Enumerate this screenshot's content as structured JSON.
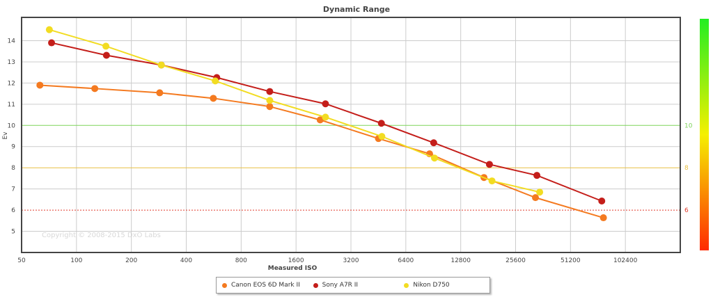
{
  "chart_data": {
    "type": "line",
    "title": "Dynamic Range",
    "xlabel": "Measured ISO",
    "ylabel": "Ev",
    "x_scale": "log2",
    "xlim": [
      50,
      204800
    ],
    "ylim": [
      4,
      15.1
    ],
    "x_ticks": [
      50,
      100,
      200,
      400,
      800,
      1600,
      3200,
      6400,
      12800,
      25600,
      51200,
      102400
    ],
    "y_ticks": [
      5,
      6,
      7,
      8,
      9,
      10,
      11,
      12,
      13,
      14
    ],
    "grid": true,
    "legend_placement": "bottom",
    "reference_lines": [
      {
        "y": 10,
        "label": "10",
        "color": "#7fd35a"
      },
      {
        "y": 8,
        "label": "8",
        "color": "#e8c040"
      },
      {
        "y": 6,
        "label": "6",
        "color": "#e03a2a"
      }
    ],
    "colorbar": {
      "top_color": "#22ee22",
      "mid_color": "#f5f000",
      "bottom_color": "#ff2a00"
    },
    "watermark": "Copyright © 2008-2015 DxO Labs",
    "series": [
      {
        "name": "Canon EOS 6D Mark II",
        "color": "#f47a20",
        "x": [
          63,
          126,
          286,
          563,
          1148,
          2170,
          4530,
          8640,
          17170,
          32900,
          77600
        ],
        "y": [
          11.9,
          11.74,
          11.54,
          11.28,
          10.89,
          10.26,
          9.38,
          8.66,
          7.54,
          6.59,
          5.64
        ]
      },
      {
        "name": "Sony A7R II",
        "color": "#c41e1a",
        "x": [
          73,
          146,
          292,
          588,
          1148,
          2320,
          4700,
          9100,
          18400,
          33500,
          76000
        ],
        "y": [
          13.9,
          13.31,
          12.85,
          12.26,
          11.6,
          11.02,
          10.1,
          9.18,
          8.16,
          7.64,
          6.43
        ]
      },
      {
        "name": "Nikon D750",
        "color": "#f2dc22",
        "x": [
          71,
          145,
          292,
          577,
          1148,
          2320,
          4730,
          9190,
          19000,
          34700
        ],
        "y": [
          14.52,
          13.74,
          12.85,
          12.1,
          11.18,
          10.39,
          9.48,
          8.46,
          7.38,
          6.85
        ]
      }
    ]
  }
}
